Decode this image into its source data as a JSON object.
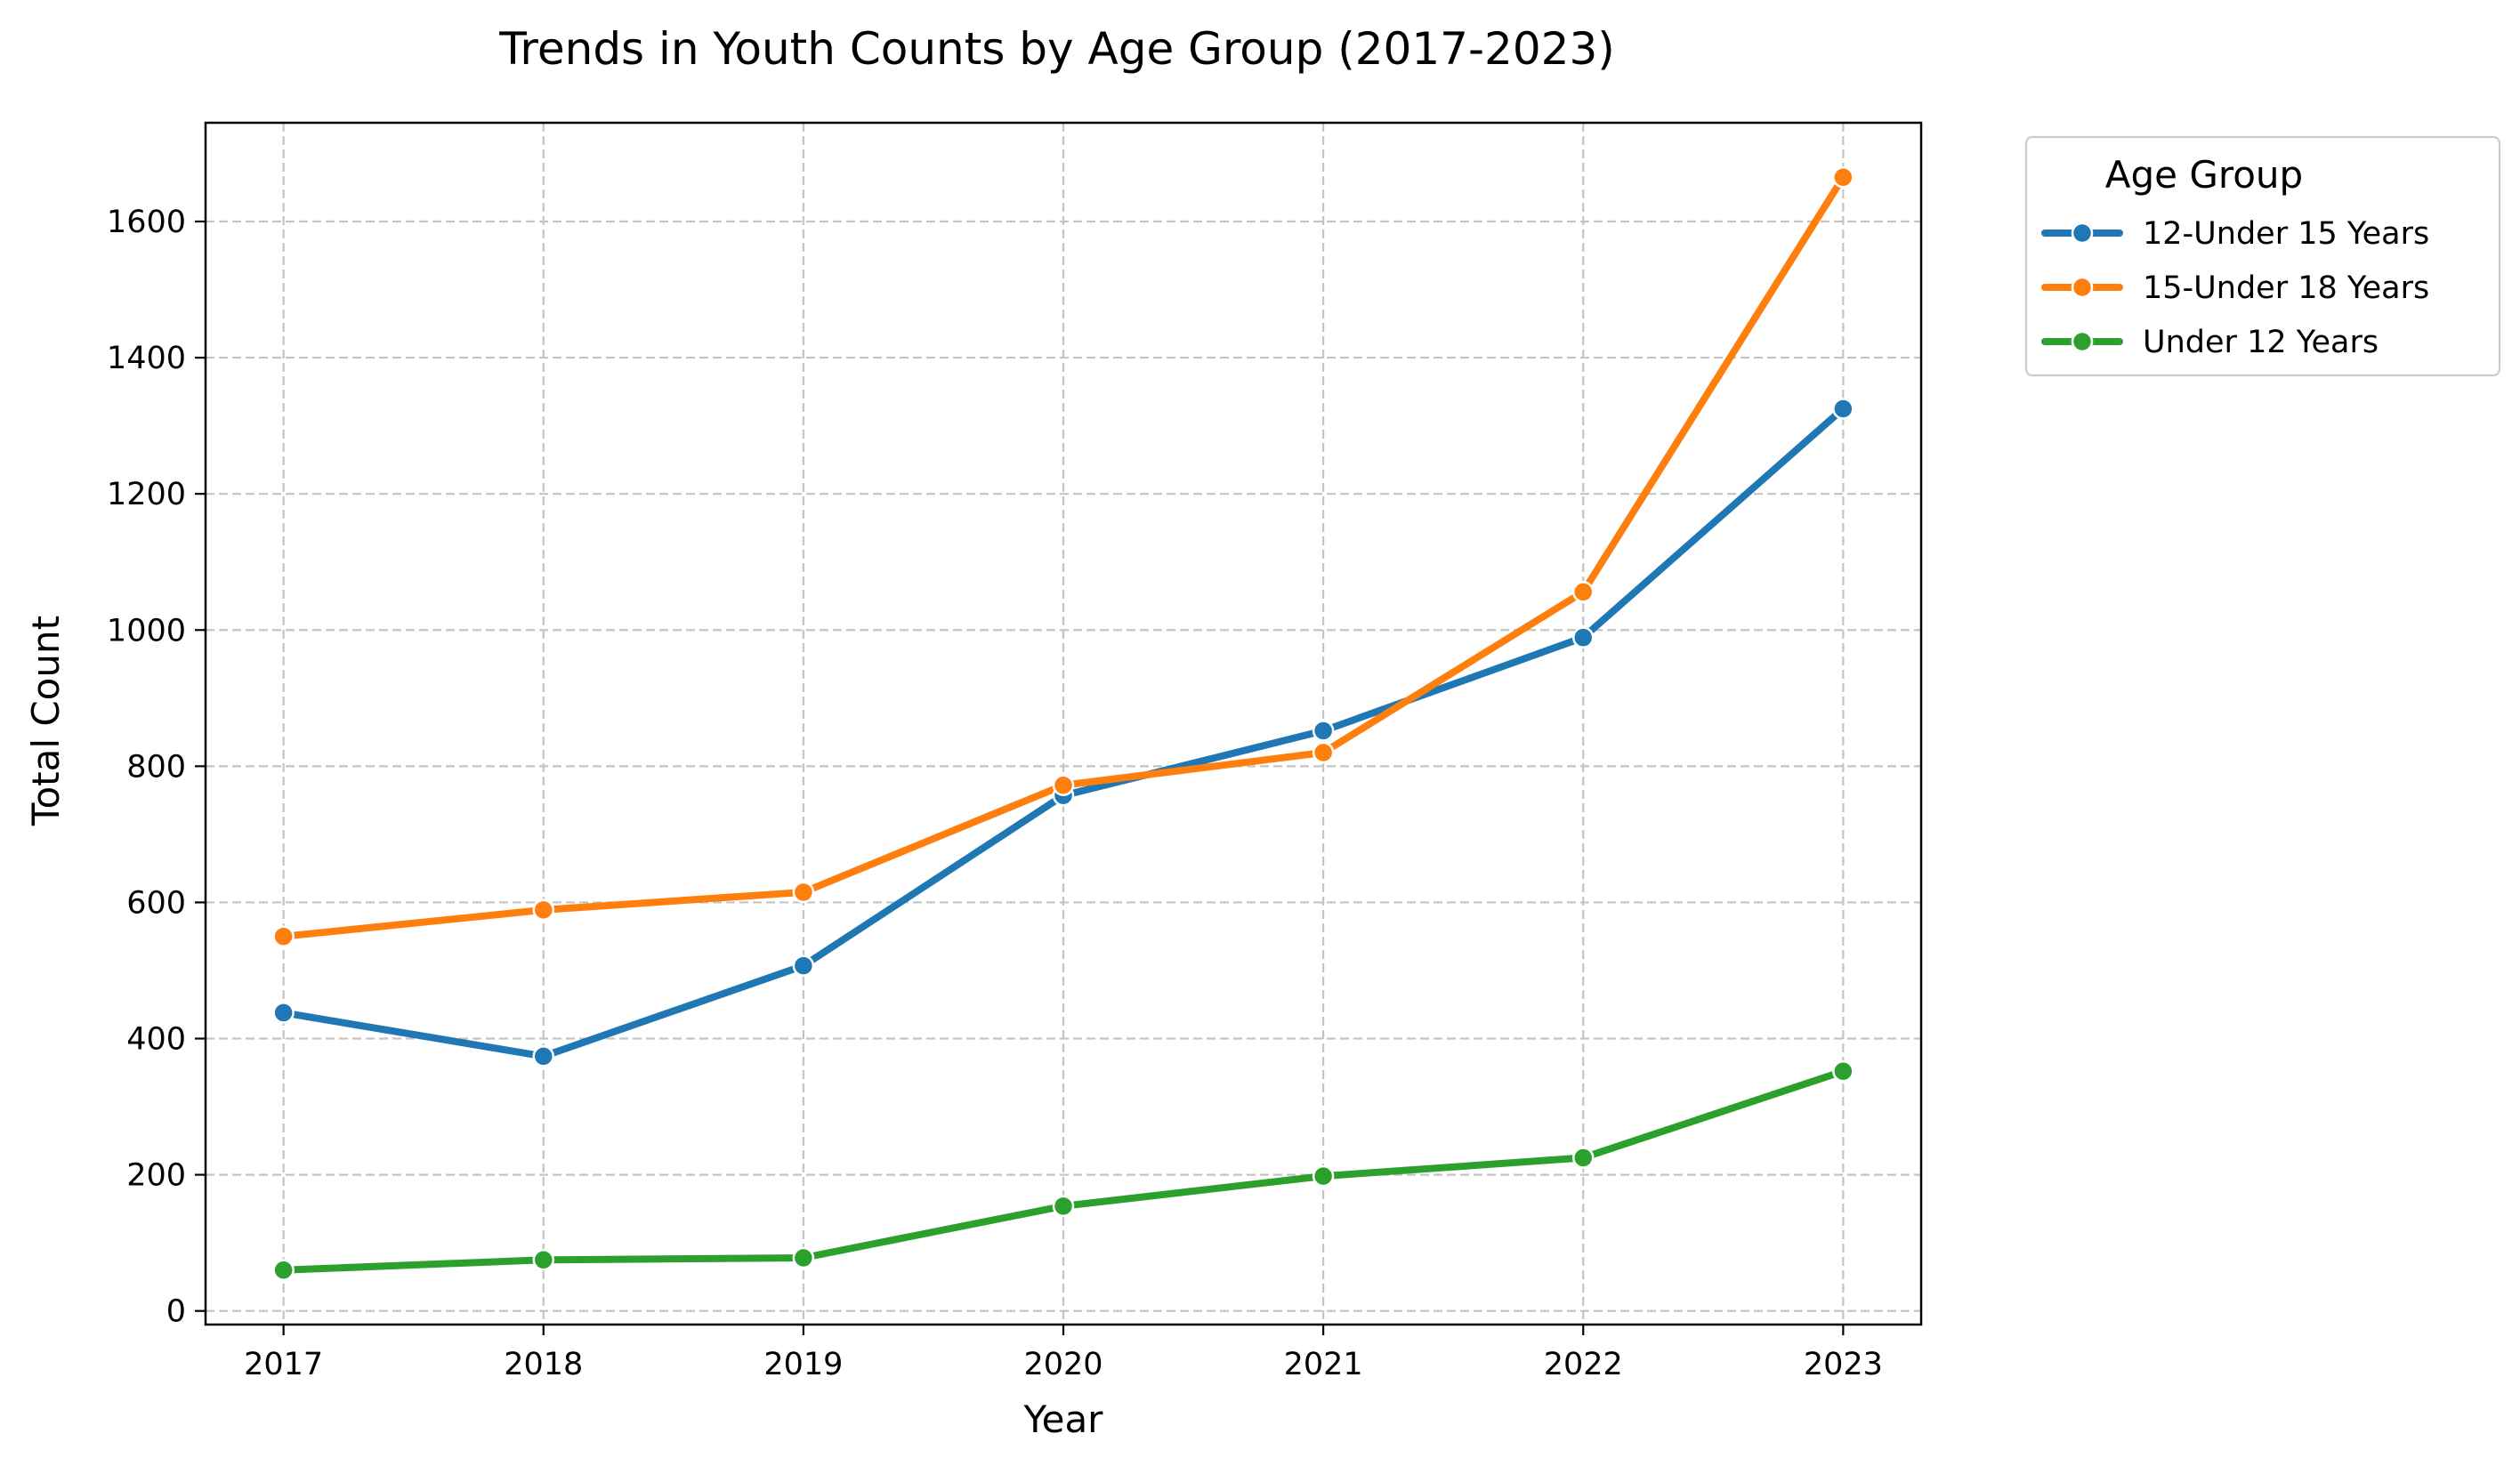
{
  "chart_data": {
    "type": "line",
    "title": "Trends in Youth Counts by Age Group (2017-2023)",
    "xlabel": "Year",
    "ylabel": "Total Count",
    "x": [
      2017,
      2018,
      2019,
      2020,
      2021,
      2022,
      2023
    ],
    "x_tick_labels": [
      "2017",
      "2018",
      "2019",
      "2020",
      "2021",
      "2022",
      "2023"
    ],
    "y_ticks": [
      0,
      200,
      400,
      600,
      800,
      1000,
      1200,
      1400,
      1600
    ],
    "y_tick_labels": [
      "0",
      "200",
      "400",
      "600",
      "800",
      "1000",
      "1200",
      "1400",
      "1600"
    ],
    "xlim": [
      2016.7,
      2023.3
    ],
    "ylim": [
      -20,
      1745
    ],
    "grid": true,
    "legend": {
      "title": "Age Group",
      "placement": "outside-top-right"
    },
    "series": [
      {
        "name": "12-Under 15 Years",
        "color": "#1f77b4",
        "values": [
          438,
          374,
          507,
          757,
          852,
          989,
          1325
        ]
      },
      {
        "name": "15-Under 18 Years",
        "color": "#ff7f0e",
        "values": [
          550,
          589,
          615,
          772,
          820,
          1056,
          1665
        ]
      },
      {
        "name": "Under 12 Years",
        "color": "#2ca02c",
        "values": [
          60,
          75,
          78,
          154,
          198,
          225,
          352
        ]
      }
    ]
  }
}
